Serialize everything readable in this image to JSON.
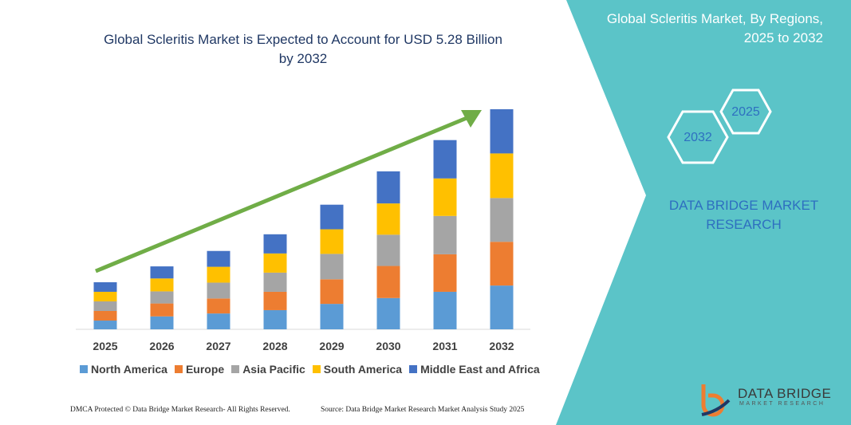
{
  "chart_data": {
    "type": "stacked-bar",
    "title": "Global Scleritis Market is Expected to Account for USD 5.28 Billion by 2032",
    "categories": [
      "2025",
      "2026",
      "2027",
      "2028",
      "2029",
      "2030",
      "2031",
      "2032"
    ],
    "series": [
      {
        "name": "North America",
        "color": "#5b9bd5",
        "values": [
          0.21,
          0.31,
          0.38,
          0.46,
          0.61,
          0.75,
          0.9,
          1.05
        ]
      },
      {
        "name": "Europe",
        "color": "#ed7d31",
        "values": [
          0.23,
          0.31,
          0.36,
          0.44,
          0.59,
          0.77,
          0.9,
          1.05
        ]
      },
      {
        "name": "Asia Pacific",
        "color": "#a5a5a5",
        "values": [
          0.23,
          0.29,
          0.38,
          0.46,
          0.61,
          0.75,
          0.92,
          1.05
        ]
      },
      {
        "name": "South America",
        "color": "#ffc000",
        "values": [
          0.23,
          0.31,
          0.38,
          0.46,
          0.59,
          0.75,
          0.9,
          1.07
        ]
      },
      {
        "name": "Middle East and Africa",
        "color": "#4472c4",
        "values": [
          0.23,
          0.29,
          0.38,
          0.46,
          0.59,
          0.77,
          0.92,
          1.06
        ]
      }
    ]
  },
  "panel": {
    "title": "Global Scleritis Market, By Regions, 2025 to 2032",
    "hexagons": [
      "2032",
      "2025"
    ],
    "brand": "DATA BRIDGE MARKET RESEARCH"
  },
  "logo": {
    "name": "DATA BRIDGE",
    "tagline": "MARKET RESEARCH"
  },
  "footer": {
    "left": "DMCA Protected © Data Bridge Market Research- All Rights Reserved.",
    "right": "Source: Data Bridge Market Research Market Analysis Study 2025"
  }
}
